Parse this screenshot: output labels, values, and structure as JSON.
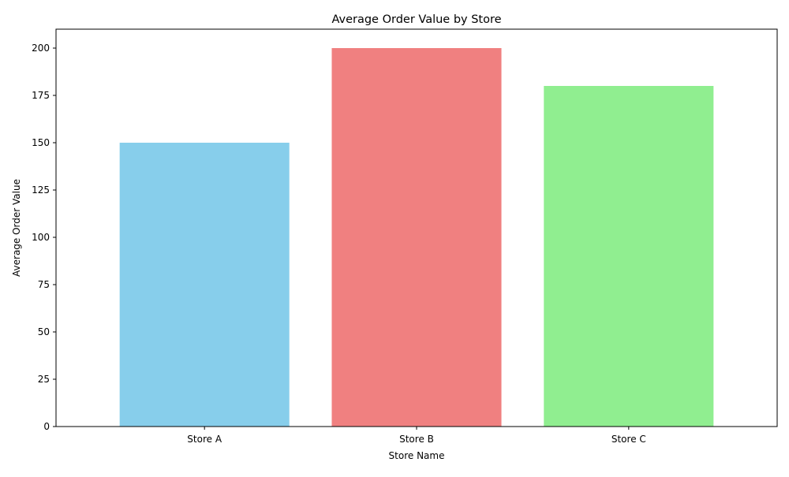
{
  "chart_data": {
    "type": "bar",
    "title": "Average Order Value by Store",
    "xlabel": "Store Name",
    "ylabel": "Average Order Value",
    "categories": [
      "Store A",
      "Store B",
      "Store C"
    ],
    "values": [
      150,
      200,
      180
    ],
    "colors": [
      "#87ceeb",
      "#f08080",
      "#90ee90"
    ],
    "ylim": [
      0,
      210
    ],
    "yticks": [
      0,
      25,
      50,
      75,
      100,
      125,
      150,
      175,
      200
    ],
    "grid": false,
    "legend": "none"
  }
}
